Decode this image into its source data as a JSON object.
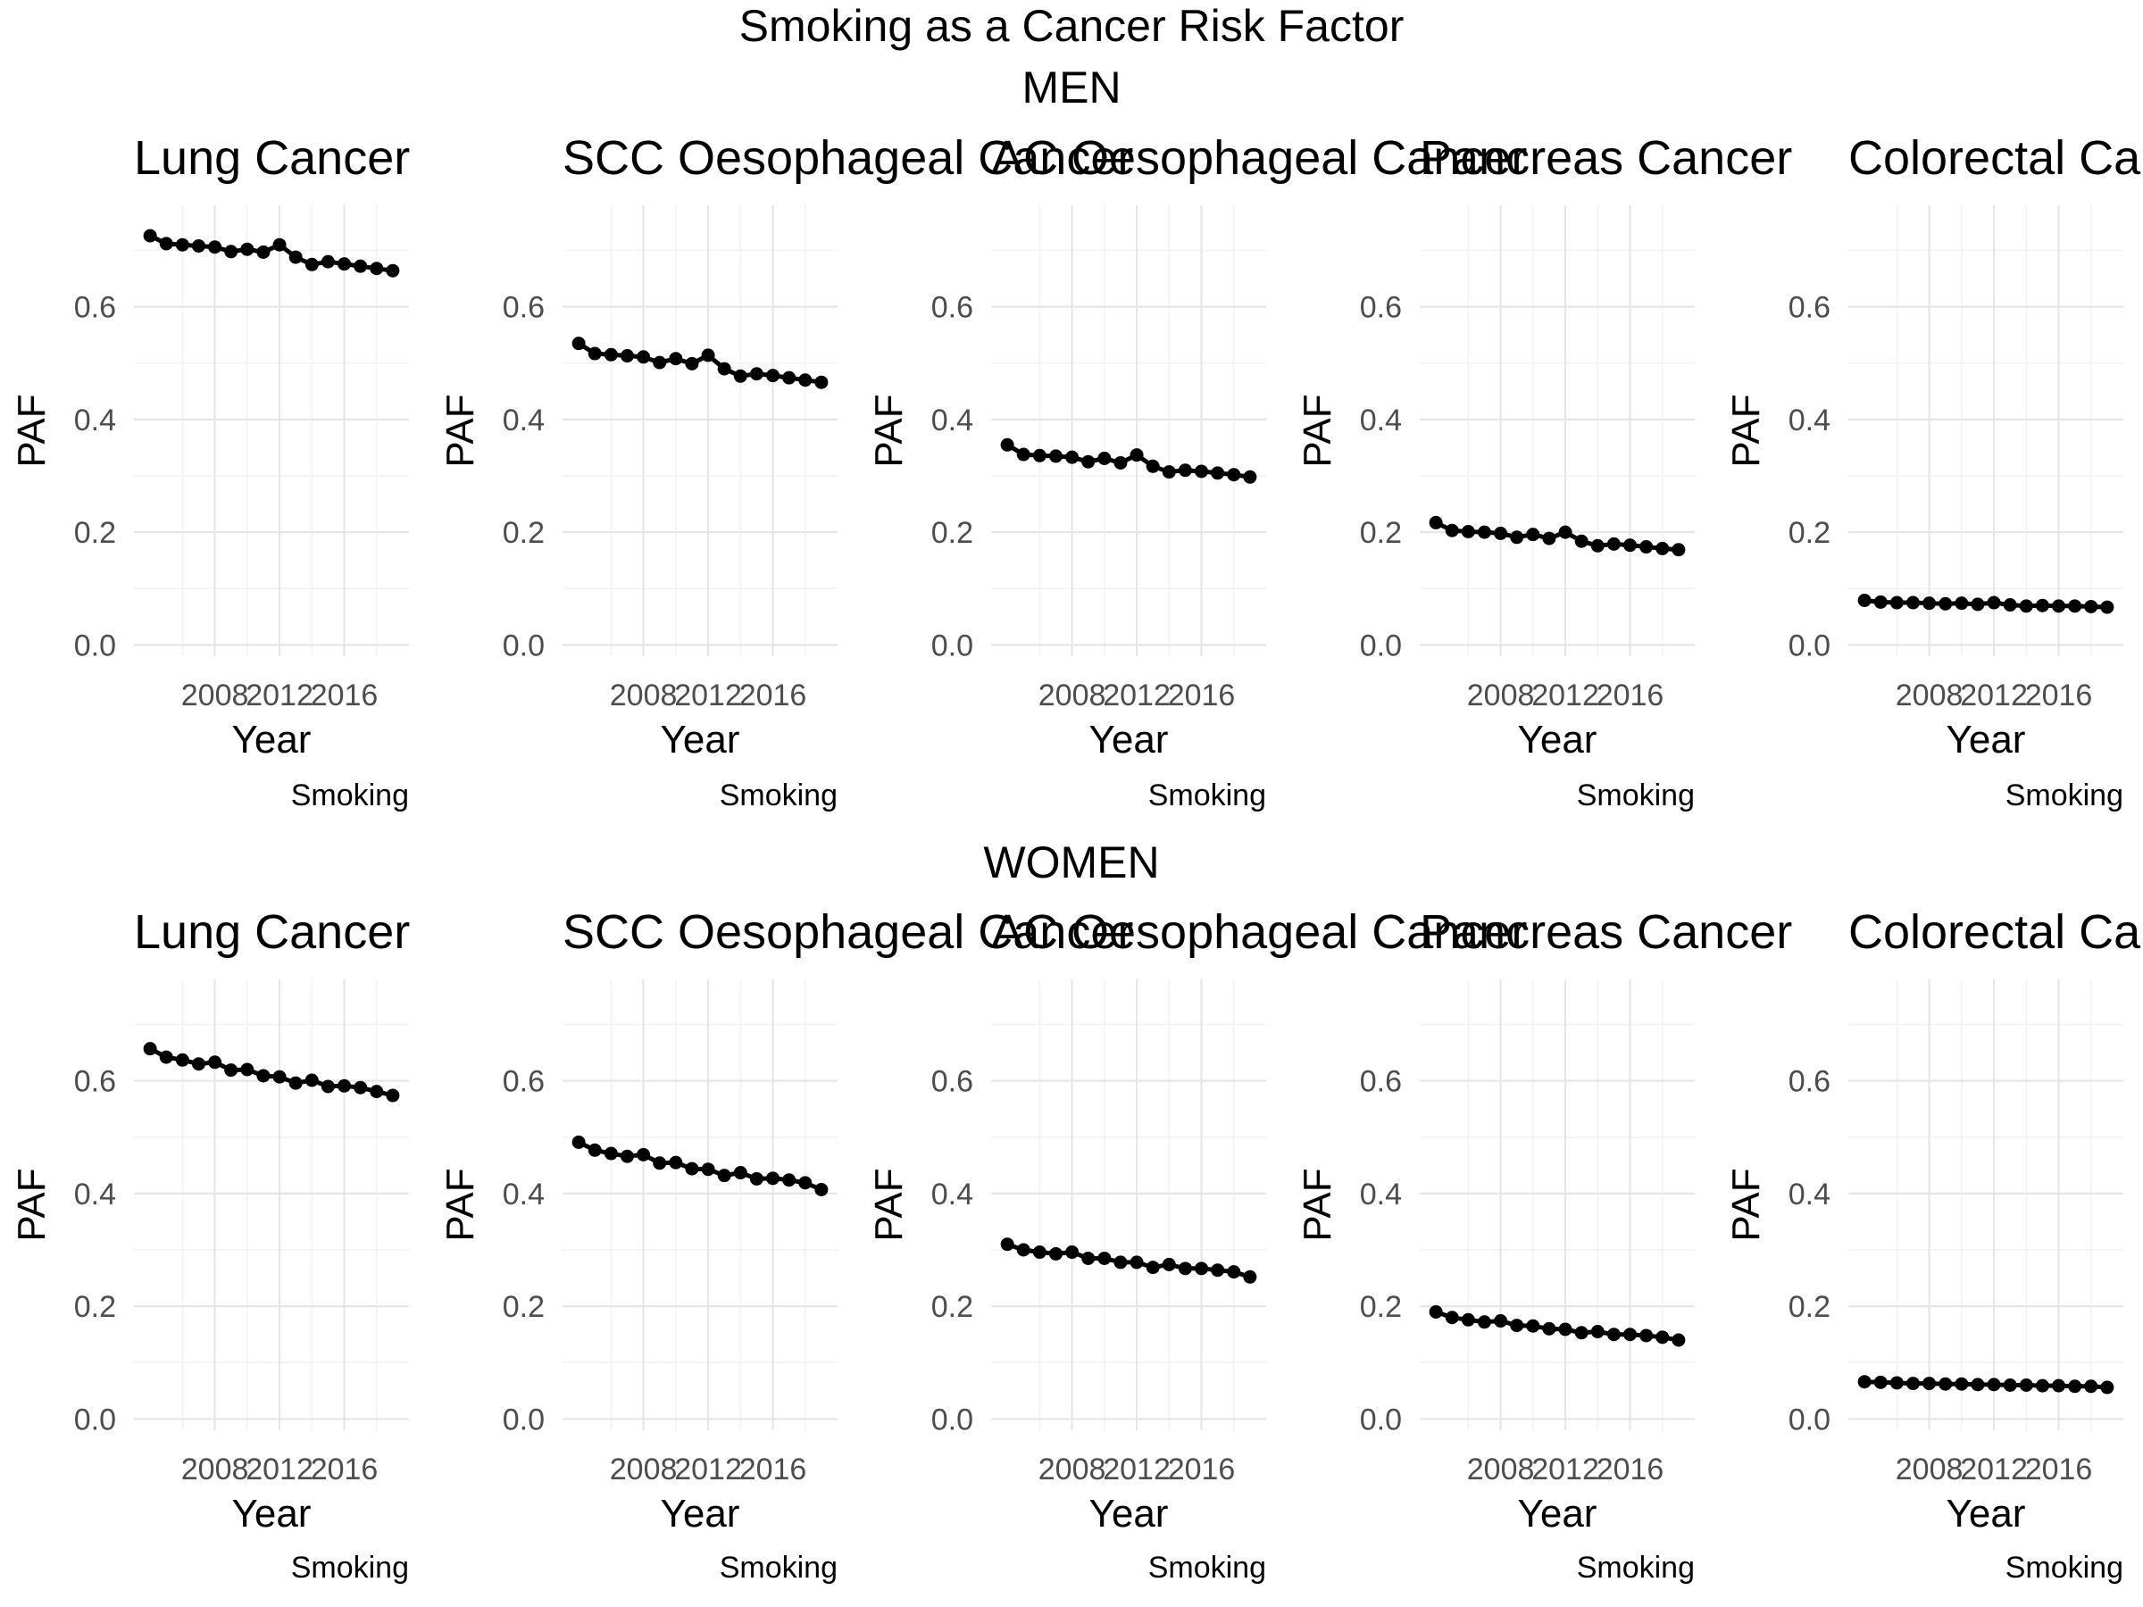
{
  "figure": {
    "title": "Smoking as a Cancer Risk Factor",
    "groups": [
      {
        "label": "MEN"
      },
      {
        "label": "WOMEN"
      }
    ]
  },
  "chart_data": [
    {
      "type": "scatter",
      "group": "MEN",
      "title": "Lung Cancer",
      "xlabel": "Year",
      "ylabel": "PAF",
      "caption": "Smoking",
      "x": [
        2004,
        2005,
        2006,
        2007,
        2008,
        2009,
        2010,
        2011,
        2012,
        2013,
        2014,
        2015,
        2016,
        2017,
        2018,
        2019
      ],
      "y": [
        0.726,
        0.712,
        0.71,
        0.708,
        0.706,
        0.698,
        0.702,
        0.697,
        0.71,
        0.688,
        0.675,
        0.68,
        0.676,
        0.672,
        0.668,
        0.664
      ],
      "xticks": [
        2008,
        2012,
        2016
      ],
      "yticks": [
        0.0,
        0.2,
        0.4,
        0.6
      ],
      "xlim": [
        2003,
        2020
      ],
      "ylim": [
        -0.02,
        0.78
      ],
      "grid": true
    },
    {
      "type": "scatter",
      "group": "MEN",
      "title": "SCC Oesophageal Cancer",
      "xlabel": "Year",
      "ylabel": "PAF",
      "caption": "Smoking",
      "x": [
        2004,
        2005,
        2006,
        2007,
        2008,
        2009,
        2010,
        2011,
        2012,
        2013,
        2014,
        2015,
        2016,
        2017,
        2018,
        2019
      ],
      "y": [
        0.535,
        0.517,
        0.515,
        0.513,
        0.511,
        0.501,
        0.508,
        0.499,
        0.514,
        0.49,
        0.477,
        0.481,
        0.478,
        0.474,
        0.47,
        0.466
      ],
      "xticks": [
        2008,
        2012,
        2016
      ],
      "yticks": [
        0.0,
        0.2,
        0.4,
        0.6
      ],
      "xlim": [
        2003,
        2020
      ],
      "ylim": [
        -0.02,
        0.78
      ],
      "grid": true
    },
    {
      "type": "scatter",
      "group": "MEN",
      "title": "AC Oesophageal Cancer",
      "xlabel": "Year",
      "ylabel": "PAF",
      "caption": "Smoking",
      "x": [
        2004,
        2005,
        2006,
        2007,
        2008,
        2009,
        2010,
        2011,
        2012,
        2013,
        2014,
        2015,
        2016,
        2017,
        2018,
        2019
      ],
      "y": [
        0.355,
        0.338,
        0.336,
        0.335,
        0.333,
        0.325,
        0.331,
        0.323,
        0.337,
        0.317,
        0.307,
        0.31,
        0.308,
        0.305,
        0.302,
        0.298
      ],
      "xticks": [
        2008,
        2012,
        2016
      ],
      "yticks": [
        0.0,
        0.2,
        0.4,
        0.6
      ],
      "xlim": [
        2003,
        2020
      ],
      "ylim": [
        -0.02,
        0.78
      ],
      "grid": true
    },
    {
      "type": "scatter",
      "group": "MEN",
      "title": "Pancreas Cancer",
      "xlabel": "Year",
      "ylabel": "PAF",
      "caption": "Smoking",
      "x": [
        2004,
        2005,
        2006,
        2007,
        2008,
        2009,
        2010,
        2011,
        2012,
        2013,
        2014,
        2015,
        2016,
        2017,
        2018,
        2019
      ],
      "y": [
        0.217,
        0.203,
        0.201,
        0.2,
        0.198,
        0.191,
        0.196,
        0.189,
        0.2,
        0.184,
        0.176,
        0.179,
        0.177,
        0.174,
        0.171,
        0.169
      ],
      "xticks": [
        2008,
        2012,
        2016
      ],
      "yticks": [
        0.0,
        0.2,
        0.4,
        0.6
      ],
      "xlim": [
        2003,
        2020
      ],
      "ylim": [
        -0.02,
        0.78
      ],
      "grid": true
    },
    {
      "type": "scatter",
      "group": "MEN",
      "title": "Colorectal Cancer",
      "xlabel": "Year",
      "ylabel": "PAF",
      "caption": "Smoking",
      "x": [
        2004,
        2005,
        2006,
        2007,
        2008,
        2009,
        2010,
        2011,
        2012,
        2013,
        2014,
        2015,
        2016,
        2017,
        2018,
        2019
      ],
      "y": [
        0.079,
        0.076,
        0.075,
        0.075,
        0.074,
        0.073,
        0.074,
        0.072,
        0.075,
        0.071,
        0.069,
        0.07,
        0.069,
        0.069,
        0.068,
        0.067
      ],
      "xticks": [
        2008,
        2012,
        2016
      ],
      "yticks": [
        0.0,
        0.2,
        0.4,
        0.6
      ],
      "xlim": [
        2003,
        2020
      ],
      "ylim": [
        -0.02,
        0.78
      ],
      "grid": true
    },
    {
      "type": "scatter",
      "group": "WOMEN",
      "title": "Lung Cancer",
      "xlabel": "Year",
      "ylabel": "PAF",
      "caption": "Smoking",
      "x": [
        2004,
        2005,
        2006,
        2007,
        2008,
        2009,
        2010,
        2011,
        2012,
        2013,
        2014,
        2015,
        2016,
        2017,
        2018,
        2019
      ],
      "y": [
        0.657,
        0.642,
        0.637,
        0.63,
        0.633,
        0.619,
        0.62,
        0.609,
        0.607,
        0.596,
        0.601,
        0.59,
        0.591,
        0.588,
        0.581,
        0.574
      ],
      "xticks": [
        2008,
        2012,
        2016
      ],
      "yticks": [
        0.0,
        0.2,
        0.4,
        0.6
      ],
      "xlim": [
        2003,
        2020
      ],
      "ylim": [
        -0.02,
        0.78
      ],
      "grid": true
    },
    {
      "type": "scatter",
      "group": "WOMEN",
      "title": "SCC Oesophageal Cancer",
      "xlabel": "Year",
      "ylabel": "PAF",
      "caption": "Smoking",
      "x": [
        2004,
        2005,
        2006,
        2007,
        2008,
        2009,
        2010,
        2011,
        2012,
        2013,
        2014,
        2015,
        2016,
        2017,
        2018,
        2019
      ],
      "y": [
        0.491,
        0.477,
        0.471,
        0.466,
        0.469,
        0.454,
        0.455,
        0.444,
        0.443,
        0.432,
        0.437,
        0.426,
        0.427,
        0.424,
        0.419,
        0.407
      ],
      "xticks": [
        2008,
        2012,
        2016
      ],
      "yticks": [
        0.0,
        0.2,
        0.4,
        0.6
      ],
      "xlim": [
        2003,
        2020
      ],
      "ylim": [
        -0.02,
        0.78
      ],
      "grid": true
    },
    {
      "type": "scatter",
      "group": "WOMEN",
      "title": "AC Oesophageal Cancer",
      "xlabel": "Year",
      "ylabel": "PAF",
      "caption": "Smoking",
      "x": [
        2004,
        2005,
        2006,
        2007,
        2008,
        2009,
        2010,
        2011,
        2012,
        2013,
        2014,
        2015,
        2016,
        2017,
        2018,
        2019
      ],
      "y": [
        0.31,
        0.3,
        0.296,
        0.293,
        0.296,
        0.285,
        0.285,
        0.278,
        0.278,
        0.269,
        0.274,
        0.267,
        0.267,
        0.264,
        0.261,
        0.252
      ],
      "xticks": [
        2008,
        2012,
        2016
      ],
      "yticks": [
        0.0,
        0.2,
        0.4,
        0.6
      ],
      "xlim": [
        2003,
        2020
      ],
      "ylim": [
        -0.02,
        0.78
      ],
      "grid": true
    },
    {
      "type": "scatter",
      "group": "WOMEN",
      "title": "Pancreas Cancer",
      "xlabel": "Year",
      "ylabel": "PAF",
      "caption": "Smoking",
      "x": [
        2004,
        2005,
        2006,
        2007,
        2008,
        2009,
        2010,
        2011,
        2012,
        2013,
        2014,
        2015,
        2016,
        2017,
        2018,
        2019
      ],
      "y": [
        0.19,
        0.18,
        0.176,
        0.172,
        0.174,
        0.166,
        0.165,
        0.16,
        0.159,
        0.153,
        0.155,
        0.15,
        0.15,
        0.148,
        0.145,
        0.14
      ],
      "xticks": [
        2008,
        2012,
        2016
      ],
      "yticks": [
        0.0,
        0.2,
        0.4,
        0.6
      ],
      "xlim": [
        2003,
        2020
      ],
      "ylim": [
        -0.02,
        0.78
      ],
      "grid": true
    },
    {
      "type": "scatter",
      "group": "WOMEN",
      "title": "Colorectal Cancer",
      "xlabel": "Year",
      "ylabel": "PAF",
      "caption": "Smoking",
      "x": [
        2004,
        2005,
        2006,
        2007,
        2008,
        2009,
        2010,
        2011,
        2012,
        2013,
        2014,
        2015,
        2016,
        2017,
        2018,
        2019
      ],
      "y": [
        0.066,
        0.065,
        0.064,
        0.063,
        0.063,
        0.062,
        0.062,
        0.061,
        0.061,
        0.06,
        0.06,
        0.059,
        0.059,
        0.058,
        0.058,
        0.056
      ],
      "xticks": [
        2008,
        2012,
        2016
      ],
      "yticks": [
        0.0,
        0.2,
        0.4,
        0.6
      ],
      "xlim": [
        2003,
        2020
      ],
      "ylim": [
        -0.02,
        0.78
      ],
      "grid": true
    }
  ]
}
